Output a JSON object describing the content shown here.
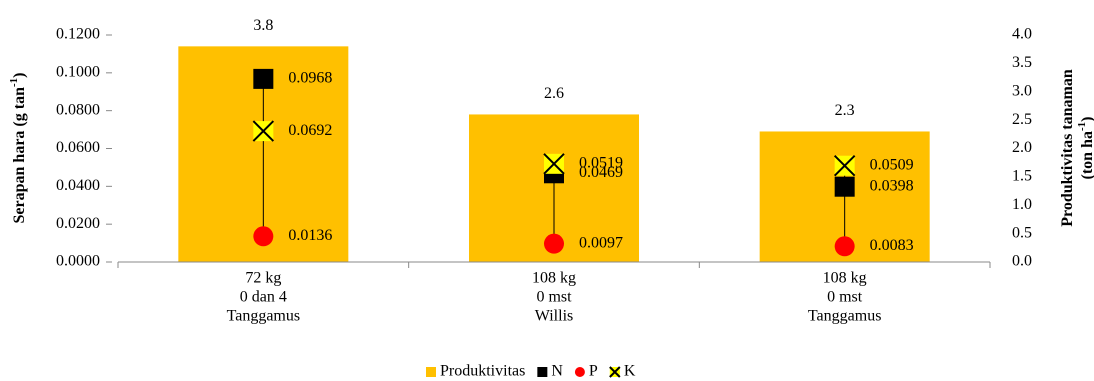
{
  "chart_data": {
    "type": "bar",
    "categories": [
      [
        "72 kg",
        "0 dan 4",
        "Tanggamus"
      ],
      [
        "108 kg",
        "0 mst",
        "Willis"
      ],
      [
        "108 kg",
        "0 mst",
        "Tanggamus"
      ]
    ],
    "ylabel": [
      "Serapan hara (g tan",
      "-1",
      ")"
    ],
    "y2label": [
      [
        "Produktivitas tanaman"
      ],
      [
        "(ton ha",
        "-1",
        ")"
      ]
    ],
    "ylim": [
      0,
      0.12
    ],
    "yticks": [
      {
        "value": 0,
        "label": "0.0000"
      },
      {
        "value": 0.02,
        "label": "0.0200"
      },
      {
        "value": 0.04,
        "label": "0.0400"
      },
      {
        "value": 0.06,
        "label": "0.0600"
      },
      {
        "value": 0.08,
        "label": "0.0800"
      },
      {
        "value": 0.1,
        "label": "0.1000"
      },
      {
        "value": 0.12,
        "label": "0.1200"
      }
    ],
    "y2lim": [
      0,
      4
    ],
    "y2ticks": [
      {
        "value": 0,
        "label": "0.0"
      },
      0.5,
      {
        "value": 1,
        "label": "1.0"
      },
      1.5,
      {
        "value": 2,
        "label": "2.0"
      },
      2.5,
      {
        "value": 3,
        "label": "3.0"
      },
      3.5,
      {
        "value": 4,
        "label": "4.0"
      }
    ],
    "series": [
      {
        "name": "Produktivitas",
        "color": "#ffc000",
        "axis": "y2",
        "marker": "bar",
        "values": [
          3.8,
          2.6,
          2.3
        ]
      },
      {
        "name": "N",
        "color": "#000000",
        "marker": "square",
        "values": [
          0.0968,
          0.0469,
          0.0398
        ]
      },
      {
        "name": "P",
        "color": "#ff0000",
        "marker": "circle",
        "values": [
          0.0136,
          0.0097,
          0.0083
        ]
      },
      {
        "name": "K",
        "color": "#ffff00",
        "marker": "x",
        "values": [
          0.0692,
          0.0519,
          0.0509
        ]
      }
    ]
  }
}
